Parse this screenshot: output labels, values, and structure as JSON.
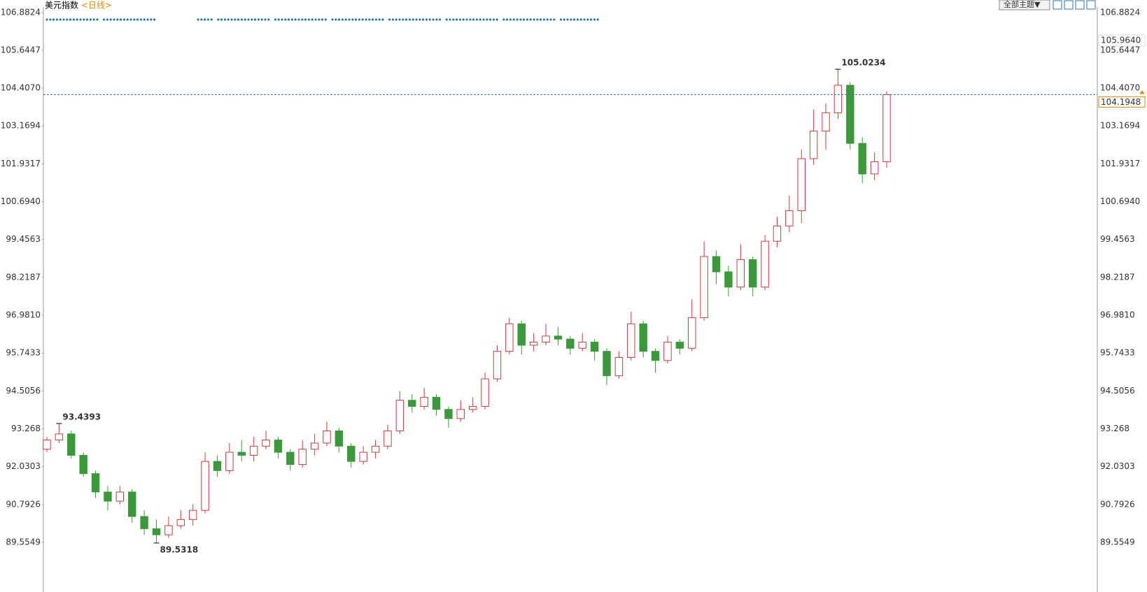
{
  "chart_data": {
    "type": "candlestick",
    "title": "美元指数",
    "subtitle": "<日线>",
    "toolbar_button": "全部主题▼",
    "up_color": "#d23a3a",
    "down_color": "#3a9a3a",
    "ylim": [
      87.93,
      107.06
    ],
    "yticks": [
      {
        "value": 89.5549,
        "label": "89.5549"
      },
      90.7926,
      92.0303,
      93.268,
      94.5056,
      95.7433,
      {
        "value": 96.981,
        "label": "96.9810"
      },
      98.2187,
      99.4563,
      {
        "value": 100.694,
        "label": "100.6940"
      },
      101.9317,
      103.1694,
      {
        "value": 104.407,
        "label": "104.4070"
      },
      {
        "value": 105.6447,
        "label": "105.6447"
      },
      106.8824
    ],
    "candles": [
      [
        92.6,
        93.0,
        92.5,
        92.9
      ],
      [
        92.9,
        93.4393,
        92.8,
        93.1
      ],
      [
        93.1,
        93.2,
        92.3,
        92.4
      ],
      [
        92.4,
        92.5,
        91.7,
        91.8
      ],
      [
        91.8,
        91.9,
        91.0,
        91.2
      ],
      [
        91.2,
        91.4,
        90.6,
        90.9
      ],
      [
        90.9,
        91.4,
        90.8,
        91.2
      ],
      [
        91.2,
        91.3,
        90.2,
        90.4
      ],
      [
        90.4,
        90.6,
        89.8,
        90.0
      ],
      [
        90.0,
        90.3,
        89.5318,
        89.8
      ],
      [
        89.8,
        90.4,
        89.7,
        90.1
      ],
      [
        90.1,
        90.6,
        90.0,
        90.3
      ],
      [
        90.3,
        90.8,
        90.1,
        90.6
      ],
      [
        90.6,
        92.5,
        90.5,
        92.2
      ],
      [
        92.2,
        92.4,
        91.7,
        91.9
      ],
      [
        91.9,
        92.8,
        91.8,
        92.5
      ],
      [
        92.5,
        92.9,
        92.2,
        92.4
      ],
      [
        92.4,
        93.0,
        92.2,
        92.7
      ],
      [
        92.7,
        93.2,
        92.6,
        92.9
      ],
      [
        92.9,
        93.0,
        92.3,
        92.5
      ],
      [
        92.5,
        92.6,
        91.9,
        92.1
      ],
      [
        92.1,
        92.9,
        92.0,
        92.6
      ],
      [
        92.6,
        93.1,
        92.4,
        92.8
      ],
      [
        92.8,
        93.5,
        92.7,
        93.2
      ],
      [
        93.2,
        93.3,
        92.5,
        92.7
      ],
      [
        92.7,
        92.8,
        92.0,
        92.2
      ],
      [
        92.2,
        92.7,
        92.1,
        92.5
      ],
      [
        92.5,
        92.9,
        92.3,
        92.7
      ],
      [
        92.7,
        93.4,
        92.6,
        93.2
      ],
      [
        93.2,
        94.5,
        93.1,
        94.2
      ],
      [
        94.2,
        94.4,
        93.8,
        94.0
      ],
      [
        94.0,
        94.6,
        93.9,
        94.3
      ],
      [
        94.3,
        94.4,
        93.7,
        93.9
      ],
      [
        93.9,
        94.0,
        93.3,
        93.6
      ],
      [
        93.6,
        94.2,
        93.5,
        93.9
      ],
      [
        93.9,
        94.3,
        93.8,
        94.0
      ],
      [
        94.0,
        95.1,
        93.9,
        94.9
      ],
      [
        94.9,
        96.0,
        94.8,
        95.8
      ],
      [
        95.8,
        96.9,
        95.7,
        96.7
      ],
      [
        96.7,
        96.8,
        95.7,
        96.0
      ],
      [
        96.0,
        96.4,
        95.8,
        96.1
      ],
      [
        96.1,
        96.7,
        96.0,
        96.3
      ],
      [
        96.3,
        96.6,
        96.0,
        96.2
      ],
      [
        96.2,
        96.3,
        95.7,
        95.9
      ],
      [
        95.9,
        96.4,
        95.8,
        96.1
      ],
      [
        96.1,
        96.2,
        95.5,
        95.8
      ],
      [
        95.8,
        95.9,
        94.7,
        95.0
      ],
      [
        95.0,
        95.8,
        94.9,
        95.6
      ],
      [
        95.6,
        97.1,
        95.5,
        96.7
      ],
      [
        96.7,
        96.8,
        95.6,
        95.8
      ],
      [
        95.8,
        95.9,
        95.1,
        95.5
      ],
      [
        95.5,
        96.3,
        95.4,
        96.1
      ],
      [
        96.1,
        96.2,
        95.7,
        95.9
      ],
      [
        95.9,
        97.5,
        95.8,
        96.9
      ],
      [
        96.9,
        99.4,
        96.8,
        98.9
      ],
      [
        98.9,
        99.1,
        98.0,
        98.4
      ],
      [
        98.4,
        98.6,
        97.6,
        97.9
      ],
      [
        97.9,
        99.3,
        97.8,
        98.8
      ],
      [
        98.8,
        98.9,
        97.6,
        97.9
      ],
      [
        97.9,
        99.6,
        97.8,
        99.4
      ],
      [
        99.4,
        100.2,
        99.2,
        99.9
      ],
      [
        99.9,
        100.9,
        99.7,
        100.4
      ],
      [
        100.4,
        102.4,
        100.0,
        102.1
      ],
      [
        102.1,
        103.7,
        101.9,
        103.0
      ],
      [
        103.0,
        103.9,
        102.4,
        103.6
      ],
      [
        103.6,
        105.0234,
        103.4,
        104.5
      ],
      [
        104.5,
        104.6,
        102.4,
        102.6
      ],
      [
        102.6,
        102.8,
        101.3,
        101.6
      ],
      [
        101.6,
        102.3,
        101.4,
        102.0
      ],
      [
        102.0,
        104.3,
        101.8,
        104.1948
      ]
    ],
    "annotations": [
      {
        "label": 93.4393,
        "candle": 1,
        "color": "#c0392b"
      },
      {
        "label": 89.5318,
        "candle": 9,
        "color": "#3a9a3a"
      },
      {
        "label": 105.0234,
        "candle": 65,
        "color": "#c0392b"
      }
    ],
    "last_price": 104.1948,
    "price_marker": {
      "value": 105.964,
      "label": "105.9640"
    }
  }
}
